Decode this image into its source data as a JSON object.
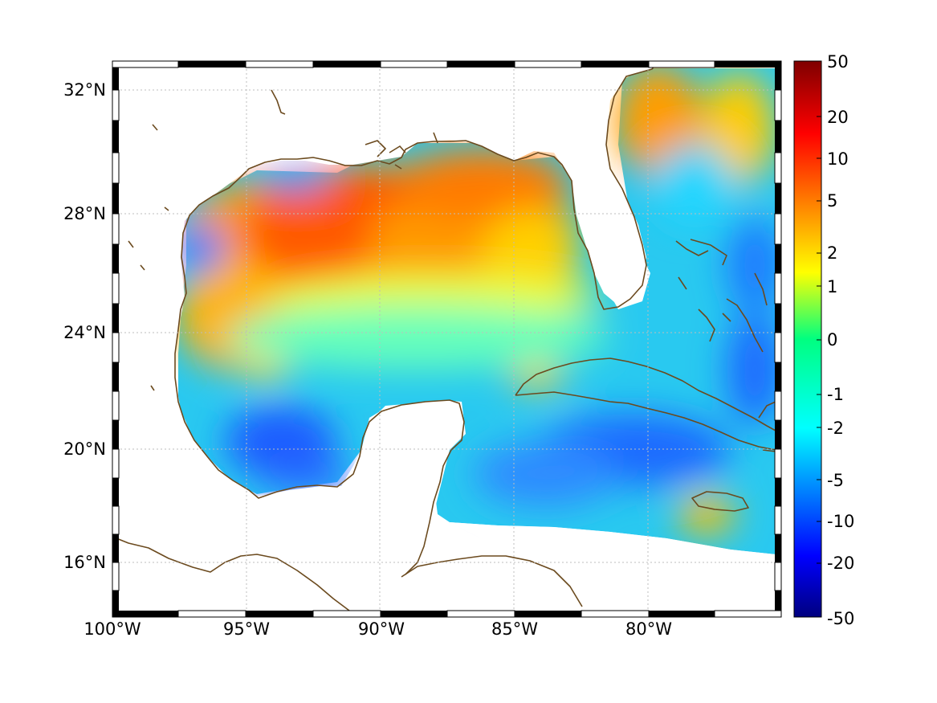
{
  "map": {
    "projection_extent": {
      "lon_min": -100,
      "lon_max": -75,
      "lat_min": 14.2,
      "lat_max": 33
    },
    "lon_ticks": [
      {
        "value": -100,
        "label": "100°W"
      },
      {
        "value": -95,
        "label": "95°W"
      },
      {
        "value": -90,
        "label": "90°W"
      },
      {
        "value": -85,
        "label": "85°W"
      },
      {
        "value": -80,
        "label": "80°W"
      }
    ],
    "lat_ticks": [
      {
        "value": 32,
        "label": "32°N"
      },
      {
        "value": 28,
        "label": "28°N"
      },
      {
        "value": 24,
        "label": "24°N"
      },
      {
        "value": 20,
        "label": "20°N"
      },
      {
        "value": 16,
        "label": "16°N"
      }
    ],
    "grid": true,
    "colors": {
      "coastline": "#6b4a1e",
      "land": "#ffffff",
      "grid": "#bdbdbd"
    }
  },
  "colorbar": {
    "ticks": [
      {
        "value": 50,
        "label": "50"
      },
      {
        "value": 20,
        "label": "20"
      },
      {
        "value": 10,
        "label": "10"
      },
      {
        "value": 5,
        "label": "5"
      },
      {
        "value": 2,
        "label": "2"
      },
      {
        "value": 1,
        "label": "1"
      },
      {
        "value": 0,
        "label": "0"
      },
      {
        "value": -1,
        "label": "-1"
      },
      {
        "value": -2,
        "label": "-2"
      },
      {
        "value": -5,
        "label": "-5"
      },
      {
        "value": -10,
        "label": "-10"
      },
      {
        "value": -20,
        "label": "-20"
      },
      {
        "value": -50,
        "label": "-50"
      }
    ],
    "colormap": "jet",
    "scale": "symmetric-log"
  }
}
